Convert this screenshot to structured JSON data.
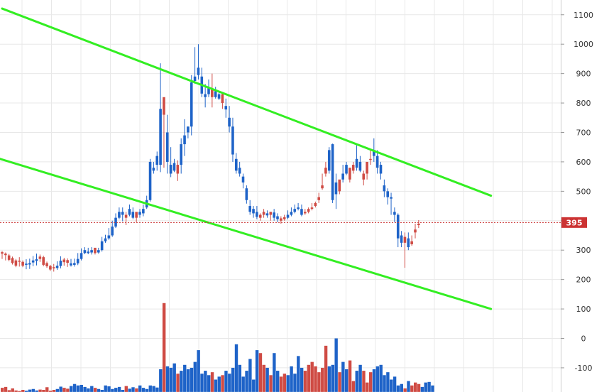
{
  "chart_data": {
    "type": "candlestick",
    "yaxis": {
      "ticks": [
        1100,
        1000,
        900,
        800,
        700,
        600,
        500,
        400,
        300,
        200,
        100,
        0,
        -100
      ],
      "tick_labels": [
        "1100",
        "1000",
        "900",
        "800",
        "700",
        "600",
        "500",
        "",
        "300",
        "200",
        "100",
        "0",
        "-100"
      ]
    },
    "last_price": {
      "value": 395,
      "label": "395"
    },
    "grid": true,
    "colors": {
      "up": "#cf4b44",
      "down": "#1e63c8",
      "trendline": "#33ee22",
      "price_line": "#cc3333",
      "grid": "#e8e8e8",
      "axis_line": "#cccccc"
    },
    "trendlines": [
      {
        "name": "upper-channel",
        "from": [
          0,
          1121
        ],
        "to": [
          142,
          485
        ]
      },
      {
        "name": "lower-channel",
        "from": [
          -57,
          812
        ],
        "to": [
          142,
          100
        ]
      }
    ],
    "volume_scale": {
      "base": -182,
      "ref": 180
    },
    "ohlc": [
      [
        288,
        297,
        293,
        270
      ],
      [
        283,
        292,
        288,
        265
      ],
      [
        267,
        287,
        282,
        262
      ],
      [
        256,
        278,
        273,
        251
      ],
      [
        247,
        270,
        265,
        242
      ],
      [
        261,
        276,
        264,
        244
      ],
      [
        247,
        265,
        260,
        242
      ],
      [
        254,
        269,
        250,
        235
      ],
      [
        256,
        271,
        251,
        236
      ],
      [
        265,
        280,
        258,
        245
      ],
      [
        269,
        288,
        263,
        248
      ],
      [
        270,
        285,
        278,
        260
      ],
      [
        250,
        281,
        276,
        245
      ],
      [
        245,
        261,
        256,
        240
      ],
      [
        234,
        250,
        246,
        229
      ],
      [
        238,
        253,
        242,
        227
      ],
      [
        247,
        262,
        239,
        233
      ],
      [
        264,
        279,
        246,
        238
      ],
      [
        259,
        274,
        268,
        247
      ],
      [
        257,
        272,
        266,
        243
      ],
      [
        255,
        270,
        248,
        244
      ],
      [
        256,
        271,
        250,
        244
      ],
      [
        270,
        290,
        255,
        249
      ],
      [
        290,
        306,
        270,
        265
      ],
      [
        300,
        310,
        290,
        286
      ],
      [
        295,
        308,
        290,
        286
      ],
      [
        300,
        310,
        292,
        285
      ],
      [
        290,
        296,
        308,
        285
      ],
      [
        300,
        308,
        292,
        288
      ],
      [
        330,
        345,
        300,
        295
      ],
      [
        340,
        352,
        330,
        325
      ],
      [
        350,
        375,
        340,
        335
      ],
      [
        380,
        400,
        350,
        345
      ],
      [
        410,
        425,
        380,
        375
      ],
      [
        430,
        445,
        410,
        405
      ],
      [
        430,
        445,
        420,
        398
      ],
      [
        410,
        430,
        420,
        385
      ],
      [
        440,
        455,
        420,
        415
      ],
      [
        430,
        445,
        410,
        405
      ],
      [
        410,
        420,
        430,
        395
      ],
      [
        430,
        440,
        420,
        410
      ],
      [
        440,
        455,
        425,
        415
      ],
      [
        470,
        485,
        445,
        440
      ],
      [
        600,
        610,
        470,
        465
      ],
      [
        580,
        600,
        570,
        560
      ],
      [
        620,
        635,
        590,
        570
      ],
      [
        780,
        935,
        590,
        565
      ],
      [
        760,
        760,
        820,
        580
      ],
      [
        700,
        760,
        600,
        560
      ],
      [
        590,
        650,
        560,
        548
      ],
      [
        596,
        610,
        570,
        565
      ],
      [
        560,
        605,
        590,
        535
      ],
      [
        660,
        680,
        590,
        560
      ],
      [
        690,
        745,
        660,
        620
      ],
      [
        720,
        720,
        700,
        680
      ],
      [
        870,
        895,
        720,
        690
      ],
      [
        890,
        990,
        875,
        865
      ],
      [
        920,
        1000,
        895,
        880
      ],
      [
        890,
        920,
        832,
        820
      ],
      [
        830,
        865,
        820,
        785
      ],
      [
        850,
        880,
        830,
        820
      ],
      [
        820,
        900,
        845,
        785
      ],
      [
        840,
        855,
        820,
        815
      ],
      [
        830,
        840,
        815,
        810
      ],
      [
        800,
        835,
        830,
        780
      ],
      [
        790,
        815,
        778,
        750
      ],
      [
        750,
        790,
        720,
        700
      ],
      [
        720,
        750,
        625,
        600
      ],
      [
        610,
        630,
        570,
        560
      ],
      [
        580,
        600,
        560,
        550
      ],
      [
        550,
        560,
        530,
        510
      ],
      [
        510,
        520,
        470,
        458
      ],
      [
        450,
        470,
        430,
        420
      ],
      [
        440,
        450,
        425,
        410
      ],
      [
        430,
        450,
        413,
        405
      ],
      [
        410,
        425,
        420,
        400
      ],
      [
        420,
        440,
        430,
        410
      ],
      [
        425,
        435,
        418,
        410
      ],
      [
        420,
        430,
        430,
        400
      ],
      [
        428,
        440,
        410,
        400
      ],
      [
        415,
        425,
        405,
        395
      ],
      [
        400,
        415,
        408,
        390
      ],
      [
        405,
        420,
        412,
        400
      ],
      [
        420,
        435,
        410,
        405
      ],
      [
        430,
        445,
        420,
        415
      ],
      [
        440,
        455,
        430,
        425
      ],
      [
        445,
        460,
        440,
        435
      ],
      [
        440,
        455,
        420,
        415
      ],
      [
        425,
        440,
        430,
        420
      ],
      [
        430,
        445,
        440,
        425
      ],
      [
        440,
        460,
        445,
        435
      ],
      [
        450,
        465,
        460,
        445
      ],
      [
        470,
        495,
        480,
        460
      ],
      [
        510,
        560,
        520,
        505
      ],
      [
        560,
        600,
        580,
        550
      ],
      [
        640,
        650,
        570,
        560
      ],
      [
        660,
        662,
        470,
        460
      ],
      [
        530,
        560,
        490,
        440
      ],
      [
        500,
        520,
        540,
        490
      ],
      [
        560,
        590,
        540,
        530
      ],
      [
        590,
        600,
        560,
        555
      ],
      [
        540,
        560,
        580,
        530
      ],
      [
        570,
        600,
        590,
        560
      ],
      [
        610,
        660,
        580,
        570
      ],
      [
        600,
        620,
        570,
        565
      ],
      [
        540,
        570,
        560,
        520
      ],
      [
        560,
        580,
        600,
        540
      ],
      [
        610,
        640,
        610,
        590
      ],
      [
        640,
        680,
        620,
        600
      ],
      [
        620,
        640,
        580,
        560
      ],
      [
        590,
        600,
        560,
        540
      ],
      [
        520,
        540,
        500,
        480
      ],
      [
        500,
        510,
        480,
        455
      ],
      [
        480,
        495,
        475,
        420
      ],
      [
        430,
        445,
        420,
        395
      ],
      [
        420,
        425,
        340,
        310
      ],
      [
        350,
        365,
        325,
        310
      ],
      [
        325,
        360,
        345,
        240
      ],
      [
        340,
        360,
        310,
        300
      ],
      [
        320,
        350,
        330,
        315
      ],
      [
        360,
        390,
        370,
        340
      ],
      [
        385,
        402,
        390,
        375
      ]
    ],
    "volume": [
      -168,
      -165,
      -176,
      -170,
      -177,
      -179,
      -175,
      -178,
      -174,
      -172,
      -177,
      -174,
      -175,
      -166,
      -178,
      -175,
      -172,
      -164,
      -168,
      -171,
      -162,
      -155,
      -160,
      -158,
      -165,
      -170,
      -162,
      -168,
      -172,
      -175,
      -160,
      -163,
      -172,
      -168,
      -165,
      -175,
      -162,
      -171,
      -166,
      -170,
      -160,
      -168,
      -172,
      -160,
      -162,
      -167,
      -105,
      120,
      -95,
      -100,
      -85,
      -120,
      -110,
      -90,
      -105,
      -100,
      -80,
      -40,
      -120,
      -110,
      -125,
      -115,
      -140,
      -130,
      -125,
      -110,
      -120,
      -100,
      -20,
      -90,
      -130,
      -110,
      -70,
      -140,
      -40,
      -50,
      -90,
      -100,
      -125,
      -50,
      -110,
      -130,
      -120,
      -125,
      -95,
      -120,
      -60,
      -100,
      -110,
      -90,
      -80,
      -95,
      -115,
      -100,
      -25,
      -95,
      -90,
      0,
      -115,
      -80,
      -105,
      -75,
      -145,
      -110,
      -90,
      -110,
      -150,
      -115,
      -105,
      -95,
      -90,
      -125,
      -115,
      -140,
      -130,
      -160,
      -155,
      -170,
      -145,
      -160,
      -150,
      -155,
      -165,
      -150,
      -148,
      -160
    ]
  }
}
